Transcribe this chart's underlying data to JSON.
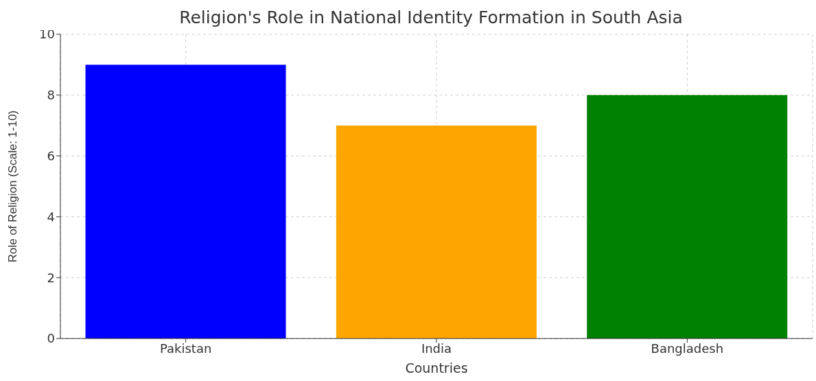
{
  "chart_data": {
    "type": "bar",
    "title": "Religion's Role in National Identity Formation in South Asia",
    "xlabel": "Countries",
    "ylabel": "Role of Religion (Scale: 1-10)",
    "categories": [
      "Pakistan",
      "India",
      "Bangladesh"
    ],
    "values": [
      9,
      7,
      8
    ],
    "colors": [
      "#0000ff",
      "#ffa500",
      "#008000"
    ],
    "ylim": [
      0,
      10
    ],
    "yticks": [
      0,
      2,
      4,
      6,
      8,
      10
    ],
    "grid": true
  }
}
